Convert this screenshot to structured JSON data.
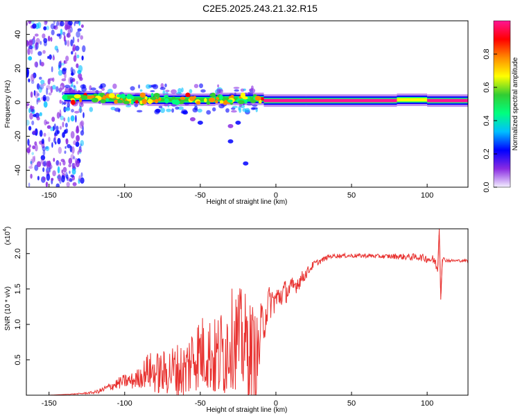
{
  "chart_data": [
    {
      "type": "heatmap",
      "title": "C2E5.2025.243.21.32.R15",
      "xlabel": "Height of straight line (km)",
      "ylabel": "Frequency (Hz)",
      "xlim": [
        -165,
        127
      ],
      "ylim": [
        -50,
        48
      ],
      "xticks": [
        "-150",
        "-100",
        "-50",
        "0",
        "50",
        "100"
      ],
      "yticks": [
        "-40",
        "-20",
        "0",
        "20",
        "40"
      ],
      "colorbar": {
        "label": "Normalized spectral amplitude",
        "range": [
          0.0,
          1.0
        ],
        "ticks": [
          "0.0",
          "0.2",
          "0.4",
          "0.6",
          "0.8"
        ],
        "colors": [
          "#f4f0ff",
          "#8a2be2",
          "#0000ff",
          "#00bfff",
          "#00ff7f",
          "#32cd32",
          "#ffff00",
          "#ff8c00",
          "#ff0000",
          "#ff1493"
        ]
      },
      "noise_region_x": [
        -165,
        -127
      ],
      "band_segments": [
        {
          "x": [
            -140,
            -128
          ],
          "y": 3.0,
          "amplitude": 0.55
        },
        {
          "x": [
            -128,
            -115
          ],
          "y": 3.0,
          "amplitude": 0.8
        },
        {
          "x": [
            -115,
            -85
          ],
          "y": 2.0,
          "amplitude": 0.6
        },
        {
          "x": [
            -85,
            -40
          ],
          "y": 1.5,
          "amplitude": 0.55
        },
        {
          "x": [
            -40,
            -15
          ],
          "y": 2.0,
          "amplitude": 0.6
        },
        {
          "x": [
            -15,
            -8
          ],
          "y": 2.0,
          "amplitude": 0.85
        },
        {
          "x": [
            -8,
            20
          ],
          "y": 1.0,
          "amplitude": 0.95
        },
        {
          "x": [
            20,
            80
          ],
          "y": 1.0,
          "amplitude": 0.98
        },
        {
          "x": [
            80,
            100
          ],
          "y": 1.5,
          "amplitude": 0.7
        },
        {
          "x": [
            100,
            127
          ],
          "y": 1.0,
          "amplitude": 0.95
        }
      ],
      "scatter_blobs": [
        {
          "x": -78,
          "y": -5,
          "amplitude": 0.25
        },
        {
          "x": -60,
          "y": -6,
          "amplitude": 0.2
        },
        {
          "x": -55,
          "y": -10,
          "amplitude": 0.15
        },
        {
          "x": -50,
          "y": -12,
          "amplitude": 0.25
        },
        {
          "x": -30,
          "y": -14,
          "amplitude": 0.15
        },
        {
          "x": -25,
          "y": -12,
          "amplitude": 0.2
        },
        {
          "x": -30,
          "y": -23,
          "amplitude": 0.25
        },
        {
          "x": -20,
          "y": -36,
          "amplitude": 0.25
        }
      ]
    },
    {
      "type": "line",
      "xlabel": "Height of straight line (km)",
      "ylabel": "SNR (10 * v/v)",
      "yscale_label": "(x10",
      "yscale_exp": "4",
      "xlim": [
        -165,
        127
      ],
      "ylim": [
        0,
        2.35
      ],
      "xticks": [
        "-150",
        "-100",
        "-50",
        "0",
        "50",
        "100"
      ],
      "yticks": [
        "0.5",
        "1.0",
        "1.5",
        "2.0"
      ],
      "color": "#e8312f",
      "x": [
        -165,
        -150,
        -140,
        -130,
        -120,
        -115,
        -110,
        -105,
        -100,
        -95,
        -90,
        -85,
        -80,
        -75,
        -70,
        -65,
        -60,
        -55,
        -50,
        -45,
        -40,
        -35,
        -30,
        -25,
        -20,
        -15,
        -12,
        -10,
        -5,
        0,
        5,
        10,
        15,
        20,
        25,
        30,
        35,
        40,
        50,
        60,
        70,
        80,
        90,
        95,
        100,
        105,
        107,
        108,
        109,
        110,
        115,
        120,
        127
      ],
      "y": [
        0.0,
        0.0,
        0.01,
        0.02,
        0.04,
        0.07,
        0.12,
        0.16,
        0.2,
        0.2,
        0.25,
        0.35,
        0.32,
        0.3,
        0.35,
        0.35,
        0.32,
        0.55,
        0.6,
        0.6,
        0.5,
        0.6,
        0.8,
        0.8,
        0.7,
        0.6,
        0.5,
        0.9,
        1.3,
        1.35,
        1.45,
        1.5,
        1.6,
        1.72,
        1.85,
        1.9,
        1.96,
        1.97,
        1.97,
        1.97,
        1.96,
        1.96,
        1.95,
        1.95,
        1.93,
        1.9,
        1.75,
        2.35,
        1.35,
        1.92,
        1.9,
        1.9,
        1.9
      ],
      "spread": [
        0.0,
        0.0,
        0.0,
        0.01,
        0.02,
        0.04,
        0.06,
        0.08,
        0.1,
        0.12,
        0.15,
        0.25,
        0.3,
        0.32,
        0.35,
        0.4,
        0.45,
        0.5,
        0.55,
        0.55,
        0.6,
        0.7,
        0.7,
        0.75,
        0.75,
        0.7,
        0.6,
        0.4,
        0.25,
        0.2,
        0.18,
        0.15,
        0.12,
        0.08,
        0.05,
        0.04,
        0.03,
        0.03,
        0.03,
        0.03,
        0.03,
        0.04,
        0.05,
        0.05,
        0.06,
        0.08,
        0.05,
        0.0,
        0.0,
        0.04,
        0.02,
        0.02,
        0.02
      ]
    }
  ]
}
